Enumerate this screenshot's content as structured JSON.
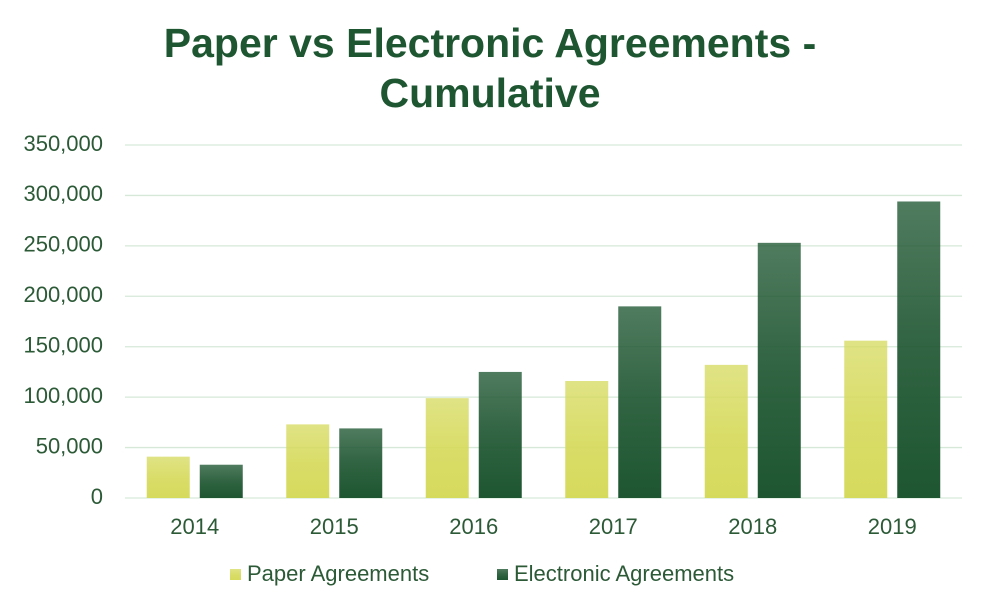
{
  "chart_data": {
    "type": "bar",
    "title": "Paper vs Electronic Agreements - Cumulative",
    "categories": [
      "2014",
      "2015",
      "2016",
      "2017",
      "2018",
      "2019"
    ],
    "series": [
      {
        "name": "Paper Agreements",
        "color": "#d6da5c",
        "values": [
          41000,
          73000,
          99000,
          116000,
          132000,
          156000
        ]
      },
      {
        "name": "Electronic Agreements",
        "color": "#1e5631",
        "values": [
          33000,
          69000,
          125000,
          190000,
          253000,
          294000
        ]
      }
    ],
    "ylim": [
      0,
      350000
    ],
    "yticks": [
      0,
      {
        "value": 50000,
        "label": "50,000"
      },
      {
        "value": 100000,
        "label": "100,000"
      },
      {
        "value": 150000,
        "label": "150,000"
      },
      {
        "value": 200000,
        "label": "200,000"
      },
      {
        "value": 250000,
        "label": "250,000"
      },
      {
        "value": 300000,
        "label": "300,000"
      },
      {
        "value": 350000,
        "label": "350,000"
      }
    ],
    "grid": true,
    "legend": "bottom"
  }
}
